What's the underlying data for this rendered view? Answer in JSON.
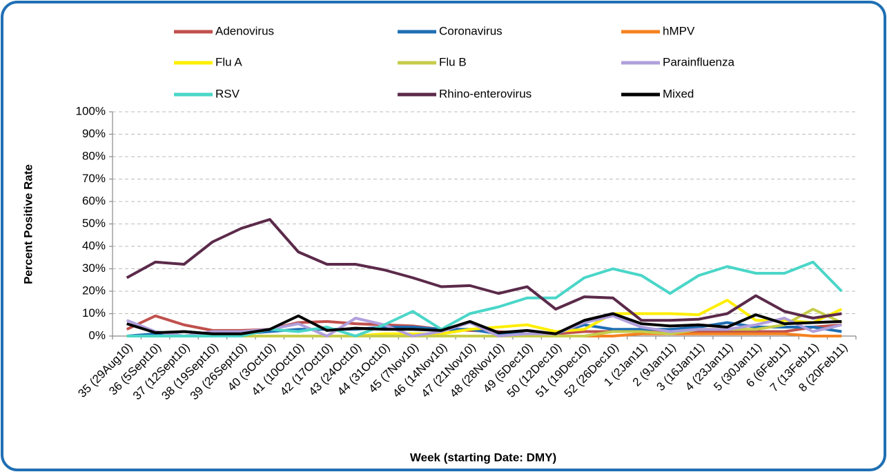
{
  "chart_data": {
    "type": "line",
    "categories": [
      "35 (29Aug10)",
      "36 (5Sept10)",
      "37 (12Sept10)",
      "38 (19Sept10)",
      "39 (26Sept10)",
      "40 (3Oct10)",
      "41 (10Oct10)",
      "42 (17Oct10)",
      "43 (24Oct10)",
      "44 (31Oct10)",
      "45 (7Nov10)",
      "46 (14Nov10)",
      "47 (21Nov10)",
      "48 (28Nov10)",
      "49 (5Dec10)",
      "50 (12Dec10)",
      "51 (19Dec10)",
      "52 (26Dec10)",
      "1 (2Jan11)",
      "2 (9Jan11)",
      "3 (16Jan11)",
      "4 (23Jan11)",
      "5 (30Jan11)",
      "6 (6Feb11)",
      "7 (13Feb11)",
      "8 (20Feb11)"
    ],
    "series": [
      {
        "name": "Adenovirus",
        "color": "#c0504d",
        "values": [
          3,
          9,
          5,
          2.5,
          2.5,
          3,
          6,
          6.5,
          5.5,
          5,
          4.5,
          3,
          2.5,
          2,
          1,
          1,
          2,
          2,
          2,
          2,
          2,
          2,
          2,
          2,
          4,
          5
        ]
      },
      {
        "name": "Coronavirus",
        "color": "#1f6fb4",
        "values": [
          0,
          1,
          2,
          1,
          1,
          2,
          3,
          3,
          3,
          4,
          4,
          3,
          3,
          1,
          1,
          1,
          5,
          3,
          3,
          3,
          4,
          6,
          4,
          4,
          4,
          2
        ]
      },
      {
        "name": "hMPV",
        "color": "#f58220",
        "values": [
          0,
          0,
          0,
          0,
          0,
          0,
          0,
          0,
          0,
          0,
          0,
          0,
          0,
          0,
          0,
          0,
          0,
          0,
          1,
          1,
          1,
          1,
          1,
          1,
          0,
          0
        ]
      },
      {
        "name": "Flu A",
        "color": "#ffee00",
        "values": [
          0,
          0,
          0,
          0,
          0,
          0,
          0,
          0,
          0,
          1,
          1,
          1,
          3,
          4,
          5,
          2,
          3,
          10,
          10,
          10,
          9.5,
          16,
          7,
          7,
          6,
          12
        ]
      },
      {
        "name": "Flu B",
        "color": "#c6cc4a",
        "values": [
          0,
          0,
          0,
          0,
          0,
          0,
          0,
          0,
          0,
          0,
          0,
          0,
          0,
          0,
          0,
          0,
          0,
          2,
          2,
          1,
          3,
          3,
          3,
          5,
          12,
          6
        ]
      },
      {
        "name": "Parainfluenza",
        "color": "#b09fdc",
        "values": [
          7,
          2,
          0,
          2,
          2,
          3,
          5.5,
          0,
          8,
          5,
          0,
          2,
          6,
          0,
          1,
          1,
          6,
          9,
          4,
          2,
          3,
          3,
          5,
          8,
          2,
          5
        ]
      },
      {
        "name": "RSV",
        "color": "#4ad6c8",
        "values": [
          0,
          0,
          0,
          0,
          0,
          3,
          2,
          4,
          0,
          5,
          11,
          3,
          10,
          13,
          17,
          17,
          26,
          30,
          27,
          19,
          27,
          31,
          28,
          28,
          33,
          20
        ]
      },
      {
        "name": "Rhino-enterovirus",
        "color": "#5b2a4a",
        "values": [
          26,
          33,
          32,
          42,
          48,
          52,
          37.5,
          32,
          32,
          29.5,
          26,
          22,
          22.5,
          19,
          22,
          12,
          17.5,
          17,
          7,
          7,
          7.5,
          10,
          18,
          11,
          8,
          10
        ]
      },
      {
        "name": "Mixed",
        "color": "#000000",
        "values": [
          5.5,
          1.5,
          2,
          1,
          1,
          3,
          9,
          2.5,
          3.5,
          3,
          3,
          2.5,
          6.5,
          1.5,
          2.5,
          1,
          7,
          10,
          5.5,
          4.5,
          5,
          4,
          9.5,
          5.5,
          6,
          6.5
        ]
      }
    ],
    "ylim": [
      0,
      100
    ],
    "yticks": [
      {
        "value": 0,
        "label": "0%"
      },
      {
        "value": 10,
        "label": "10%"
      },
      {
        "value": 20,
        "label": "20%"
      },
      {
        "value": 30,
        "label": "30%"
      },
      {
        "value": 40,
        "label": "40%"
      },
      {
        "value": 50,
        "label": "50%"
      },
      {
        "value": 60,
        "label": "60%"
      },
      {
        "value": 70,
        "label": "70%"
      },
      {
        "value": 80,
        "label": "80%"
      },
      {
        "value": 90,
        "label": "90%"
      },
      {
        "value": 100,
        "label": "100%"
      }
    ],
    "ylabel": "Percent Positive Rate",
    "xlabel": "Week (starting Date: DMY)",
    "grid": true
  }
}
